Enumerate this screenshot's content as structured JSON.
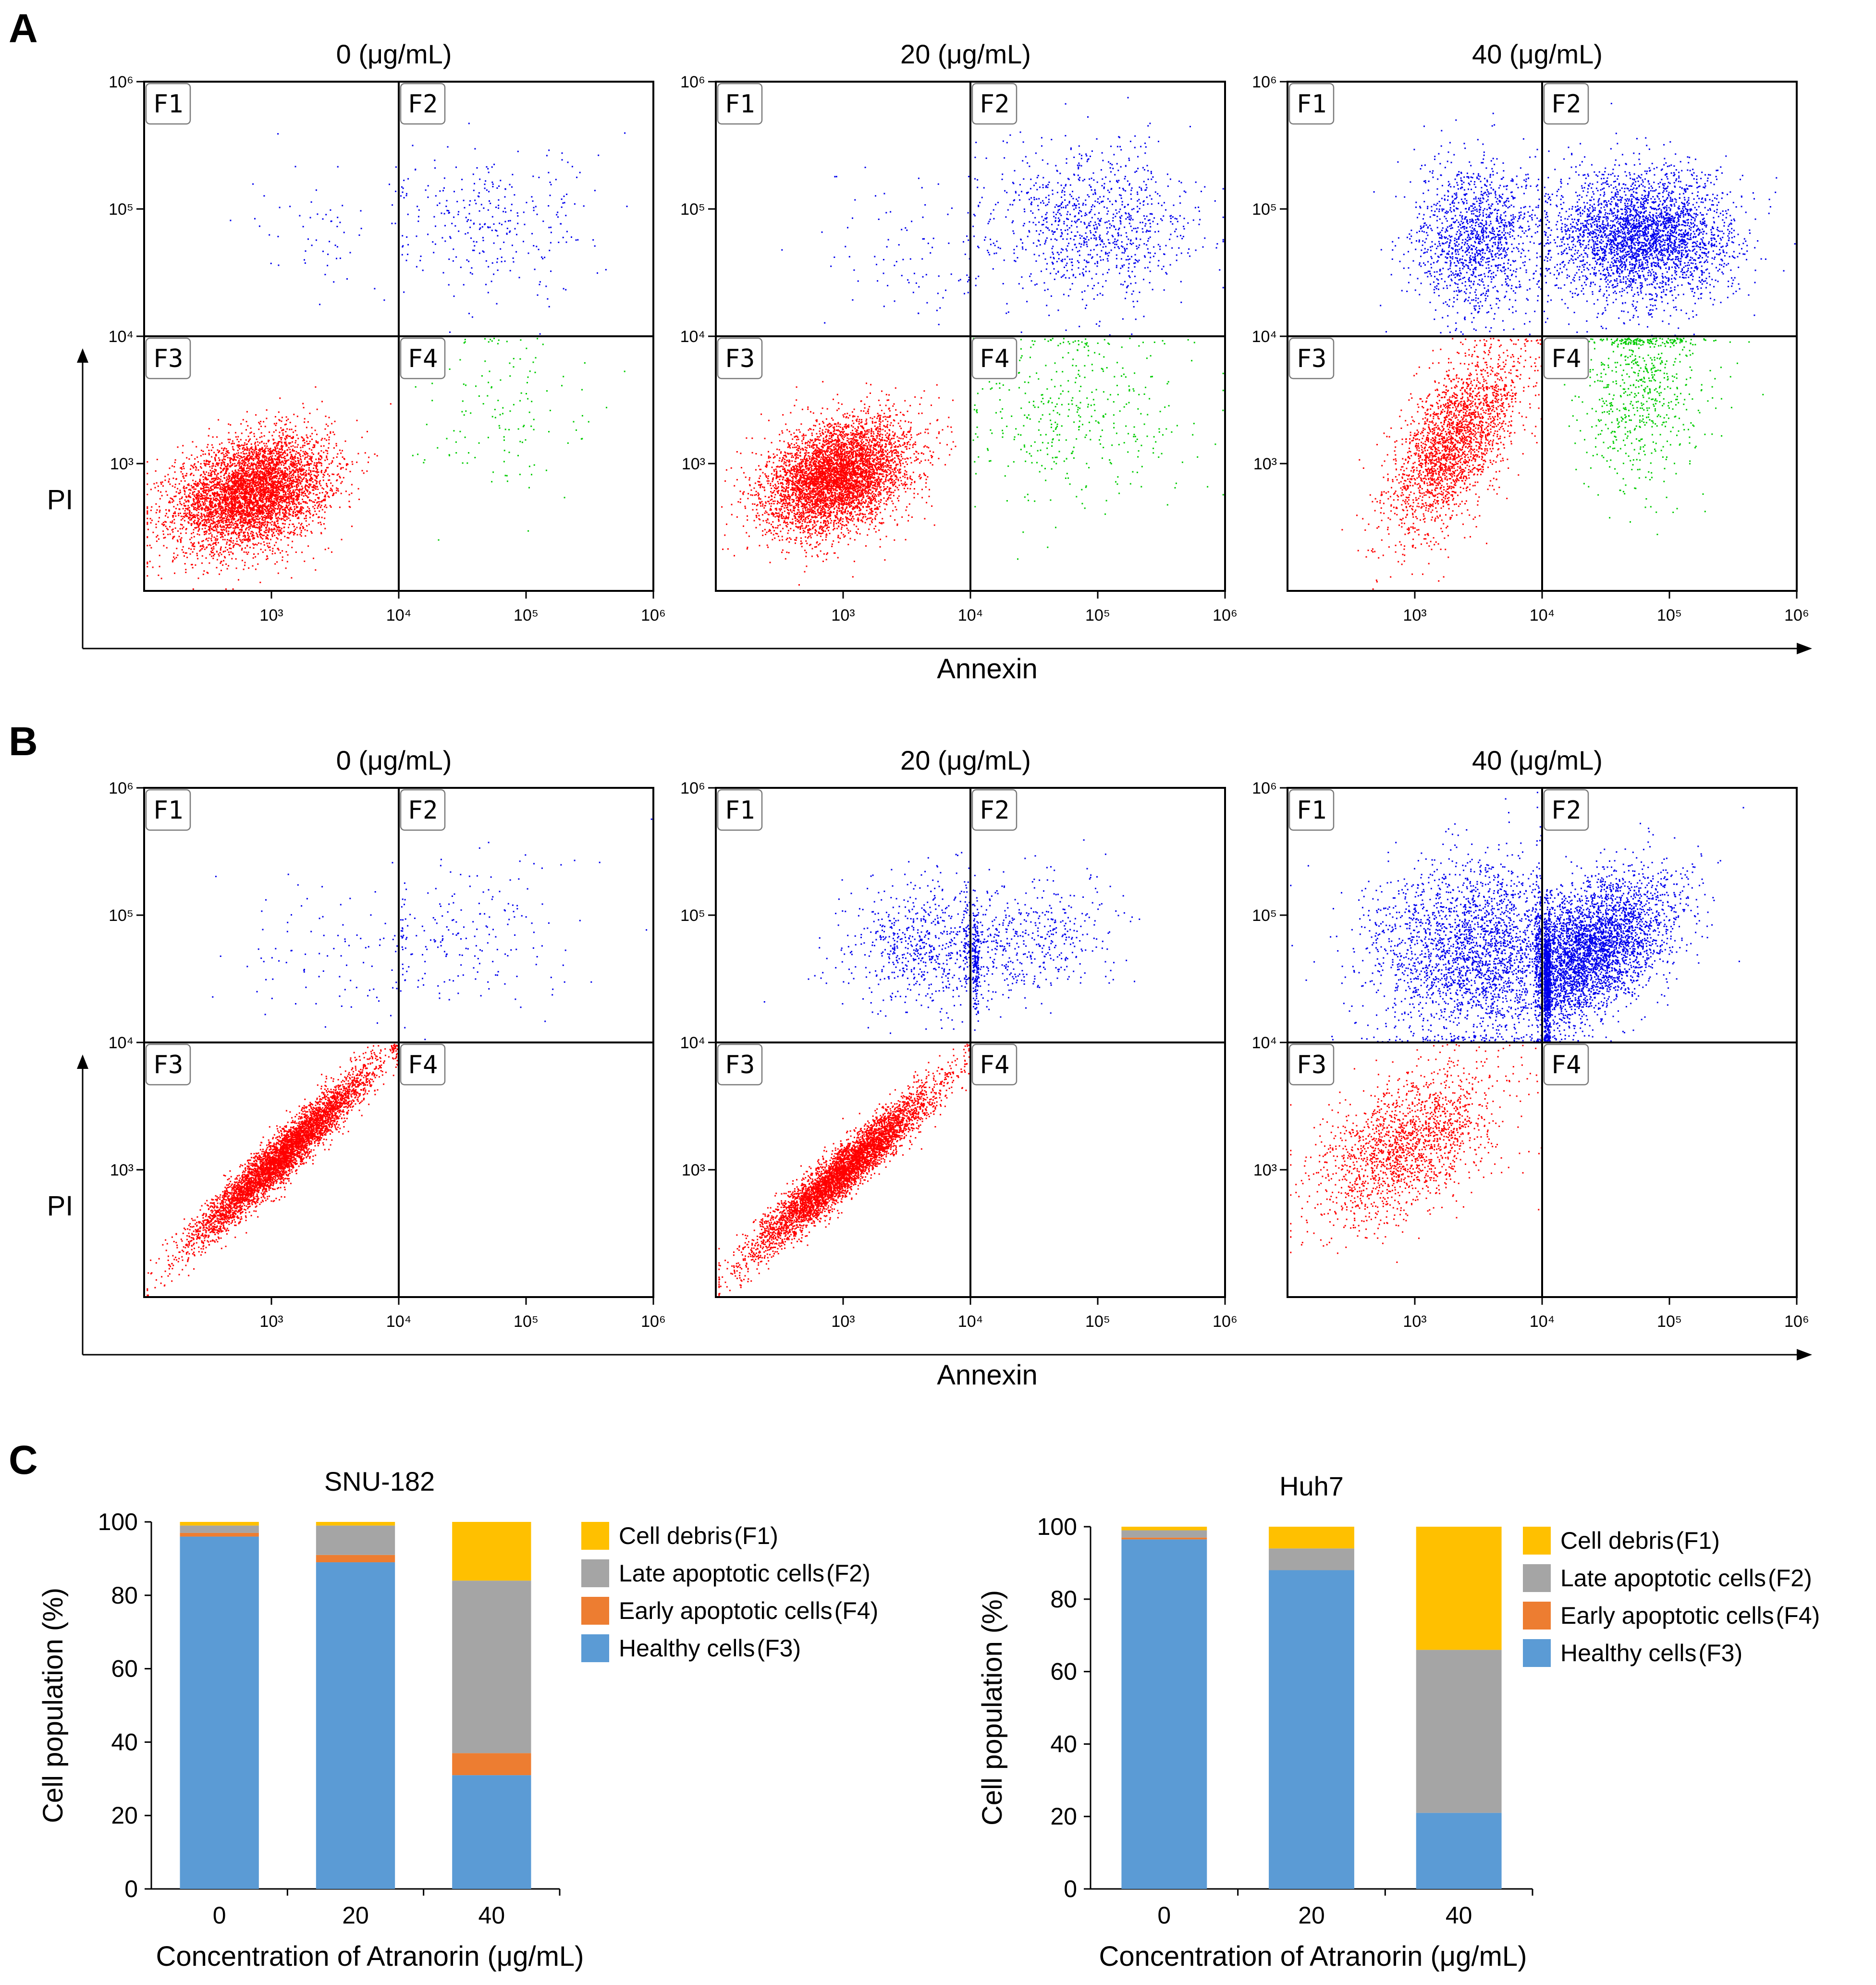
{
  "panel_labels": {
    "A": "A",
    "B": "B",
    "C": "C"
  },
  "colors": {
    "f1_f2_dots": "#0000ee",
    "f3_dots": "#ff0000",
    "f4_dots": "#00cc00",
    "healthy": "#5b9bd5",
    "early": "#ed7d31",
    "late": "#a5a5a5",
    "debris": "#ffc000"
  },
  "flow_common": {
    "quadrant_labels": [
      "F1",
      "F2",
      "F3",
      "F4"
    ],
    "x_label": "Annexin",
    "y_label": "PI",
    "tick_labels": [
      "10³",
      "10⁴",
      "10⁵",
      "10⁶"
    ]
  },
  "chart_data": [
    {
      "id": "A",
      "type": "scatter",
      "row_title": "",
      "xlabel": "Annexin",
      "ylabel": "PI",
      "xscale": "log",
      "xlim": [
        100,
        1000000
      ],
      "yscale": "log",
      "ylim": [
        100,
        1000000
      ],
      "gate": {
        "x": 10000,
        "y": 10000
      },
      "plots": [
        {
          "title": "0 (μg/mL)",
          "populations": [
            {
              "quadrant": "F3",
              "color": "#ff0000",
              "n": 5200,
              "cx": 700,
              "cy": 600,
              "sx": 0.3,
              "sy": 0.22,
              "rho": 0.3
            },
            {
              "quadrant": "F4",
              "color": "#00cc00",
              "n": 140,
              "cx": 60000,
              "cy": 3000,
              "sx": 0.35,
              "sy": 0.35,
              "rho": 0
            },
            {
              "quadrant": "F2",
              "color": "#0000ee",
              "n": 300,
              "cx": 50000,
              "cy": 80000,
              "sx": 0.4,
              "sy": 0.3,
              "rho": 0
            },
            {
              "quadrant": "F1",
              "color": "#0000ee",
              "n": 60,
              "cx": 3000,
              "cy": 70000,
              "sx": 0.35,
              "sy": 0.3,
              "rho": 0
            }
          ]
        },
        {
          "title": "20 (μg/mL)",
          "populations": [
            {
              "quadrant": "F3",
              "color": "#ff0000",
              "n": 5200,
              "cx": 900,
              "cy": 800,
              "sx": 0.28,
              "sy": 0.22,
              "rho": 0.35
            },
            {
              "quadrant": "F4",
              "color": "#00cc00",
              "n": 420,
              "cx": 60000,
              "cy": 2500,
              "sx": 0.45,
              "sy": 0.4,
              "rho": 0
            },
            {
              "quadrant": "F2",
              "color": "#0000ee",
              "n": 1000,
              "cx": 90000,
              "cy": 80000,
              "sx": 0.4,
              "sy": 0.3,
              "rho": 0
            },
            {
              "quadrant": "F1",
              "color": "#0000ee",
              "n": 90,
              "cx": 3000,
              "cy": 40000,
              "sx": 0.35,
              "sy": 0.35,
              "rho": 0
            }
          ]
        },
        {
          "title": "40 (μg/mL)",
          "populations": [
            {
              "quadrant": "F3",
              "color": "#ff0000",
              "n": 2400,
              "cx": 2000,
              "cy": 1500,
              "sx": 0.25,
              "sy": 0.35,
              "rho": 0.6
            },
            {
              "quadrant": "F4",
              "color": "#00cc00",
              "n": 700,
              "cx": 60000,
              "cy": 4000,
              "sx": 0.25,
              "sy": 0.4,
              "rho": 0
            },
            {
              "quadrant": "F2",
              "color": "#0000ee",
              "n": 3200,
              "cx": 60000,
              "cy": 60000,
              "sx": 0.35,
              "sy": 0.25,
              "rho": 0
            },
            {
              "quadrant": "F1",
              "color": "#0000ee",
              "n": 1400,
              "cx": 3000,
              "cy": 60000,
              "sx": 0.25,
              "sy": 0.3,
              "rho": 0
            }
          ]
        }
      ]
    },
    {
      "id": "B",
      "type": "scatter",
      "row_title": "",
      "xlabel": "Annexin",
      "ylabel": "PI",
      "xscale": "log",
      "xlim": [
        100,
        1000000
      ],
      "yscale": "log",
      "ylim": [
        100,
        1000000
      ],
      "gate": {
        "x": 10000,
        "y": 10000
      },
      "plots": [
        {
          "title": "0 (μg/mL)",
          "populations": [
            {
              "quadrant": "F3",
              "color": "#ff0000",
              "n": 5000,
              "cx": 1200,
              "cy": 1300,
              "sx": 0.35,
              "sy": 0.34,
              "rho": 0.96
            },
            {
              "quadrant": "F2",
              "color": "#0000ee",
              "n": 200,
              "cx": 30000,
              "cy": 70000,
              "sx": 0.45,
              "sy": 0.3,
              "rho": 0.3
            },
            {
              "quadrant": "F1",
              "color": "#0000ee",
              "n": 90,
              "cx": 3000,
              "cy": 50000,
              "sx": 0.35,
              "sy": 0.3,
              "rho": 0
            }
          ]
        },
        {
          "title": "20 (μg/mL)",
          "populations": [
            {
              "quadrant": "F3",
              "color": "#ff0000",
              "n": 5000,
              "cx": 1000,
              "cy": 1000,
              "sx": 0.35,
              "sy": 0.32,
              "rho": 0.95
            },
            {
              "quadrant": "F2",
              "color": "#0000ee",
              "n": 650,
              "cx": 20000,
              "cy": 60000,
              "sx": 0.4,
              "sy": 0.25,
              "rho": 0.3
            },
            {
              "quadrant": "F1",
              "color": "#0000ee",
              "n": 650,
              "cx": 4000,
              "cy": 60000,
              "sx": 0.3,
              "sy": 0.25,
              "rho": 0
            }
          ]
        },
        {
          "title": "40 (μg/mL)",
          "populations": [
            {
              "quadrant": "F3",
              "color": "#ff0000",
              "n": 1800,
              "cx": 800,
              "cy": 1500,
              "sx": 0.35,
              "sy": 0.3,
              "rho": 0.5
            },
            {
              "quadrant": "F2",
              "color": "#0000ee",
              "n": 4200,
              "cx": 20000,
              "cy": 50000,
              "sx": 0.35,
              "sy": 0.3,
              "rho": 0.5
            },
            {
              "quadrant": "F1",
              "color": "#0000ee",
              "n": 2600,
              "cx": 3000,
              "cy": 50000,
              "sx": 0.4,
              "sy": 0.35,
              "rho": 0
            }
          ]
        }
      ]
    },
    {
      "id": "C1",
      "type": "bar",
      "stacked": true,
      "title": "SNU-182",
      "categories": [
        "0",
        "20",
        "40"
      ],
      "xlabel": "Concentration of Atranorin (μg/mL)",
      "ylabel": "Cell population (%)",
      "ylim": [
        0,
        100
      ],
      "yticks": [
        0,
        20,
        40,
        60,
        80,
        100
      ],
      "series": [
        {
          "name": "Healthy cells",
          "tag": "(F3)",
          "color": "#5b9bd5",
          "values": [
            96,
            89,
            31
          ]
        },
        {
          "name": "Early apoptotic cells",
          "tag": "(F4)",
          "color": "#ed7d31",
          "values": [
            1,
            2,
            6
          ]
        },
        {
          "name": "Late apoptotic cells",
          "tag": "(F2)",
          "color": "#a5a5a5",
          "values": [
            2,
            8,
            47
          ]
        },
        {
          "name": "Cell debris",
          "tag": "(F1)",
          "color": "#ffc000",
          "values": [
            1,
            1,
            16
          ]
        }
      ],
      "legend_order": [
        3,
        2,
        1,
        0
      ]
    },
    {
      "id": "C2",
      "type": "bar",
      "stacked": true,
      "title": "Huh7",
      "categories": [
        "0",
        "20",
        "40"
      ],
      "xlabel": "Concentration of Atranorin (μg/mL)",
      "ylabel": "Cell population (%)",
      "ylim": [
        0,
        100
      ],
      "yticks": [
        0,
        20,
        40,
        60,
        80,
        100
      ],
      "series": [
        {
          "name": "Healthy cells",
          "tag": "(F3)",
          "color": "#5b9bd5",
          "values": [
            96.5,
            88,
            21
          ]
        },
        {
          "name": "Early apoptotic cells",
          "tag": "(F4)",
          "color": "#ed7d31",
          "values": [
            0.5,
            0,
            0
          ]
        },
        {
          "name": "Late apoptotic cells",
          "tag": "(F2)",
          "color": "#a5a5a5",
          "values": [
            2,
            6,
            45
          ]
        },
        {
          "name": "Cell debris",
          "tag": "(F1)",
          "color": "#ffc000",
          "values": [
            1,
            6,
            34
          ]
        }
      ],
      "legend_order": [
        3,
        2,
        1,
        0
      ]
    }
  ]
}
